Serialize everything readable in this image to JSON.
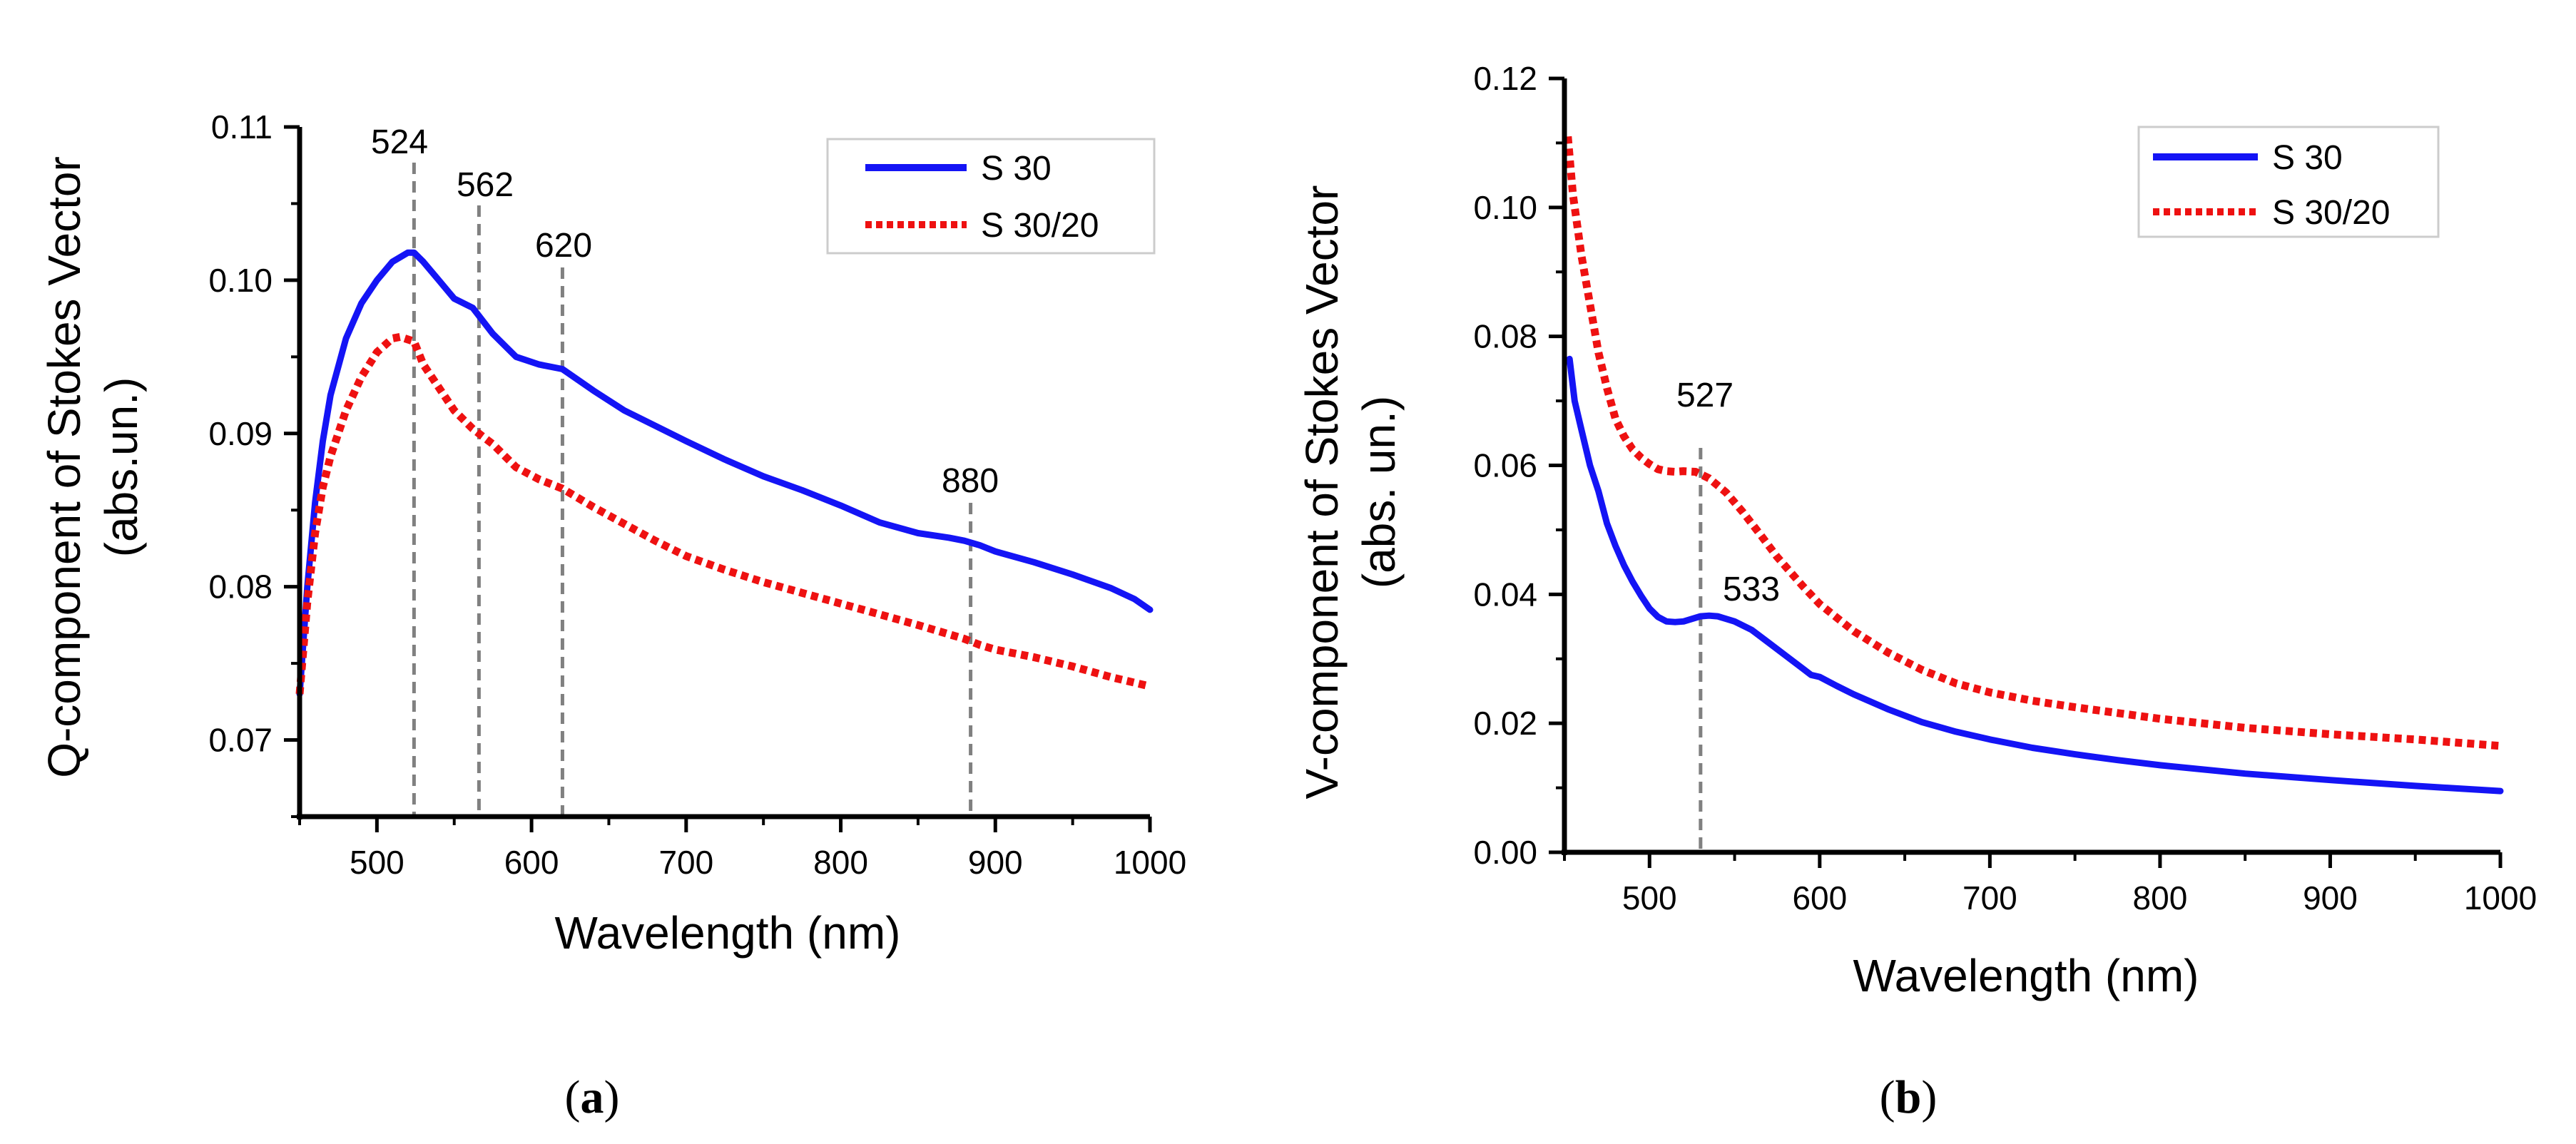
{
  "chart_data": [
    {
      "type": "line",
      "panel_label": "a",
      "xlabel": "Wavelength (nm)",
      "ylabel_line1": "Q-component of Stokes Vector",
      "ylabel_line2": "(abs.un.)",
      "xlim": [
        450,
        1000
      ],
      "ylim": [
        0.065,
        0.11
      ],
      "xticks": [
        500,
        600,
        700,
        800,
        900,
        1000
      ],
      "xtick_labels": [
        "500",
        "600",
        "700",
        "800",
        "900",
        "1000"
      ],
      "yticks": [
        0.07,
        0.08,
        0.09,
        0.1,
        0.11
      ],
      "ytick_labels": [
        "0.07",
        "0.08",
        "0.09",
        "0.10",
        "0.11"
      ],
      "legend_position": "top-right",
      "series": [
        {
          "name": "S 30",
          "color": "#1414f5",
          "style": "solid",
          "x": [
            450,
            455,
            460,
            465,
            470,
            480,
            490,
            500,
            510,
            520,
            524,
            530,
            540,
            550,
            562,
            575,
            590,
            605,
            620,
            640,
            660,
            680,
            700,
            725,
            750,
            775,
            800,
            825,
            850,
            870,
            880,
            890,
            900,
            925,
            950,
            975,
            990,
            1000
          ],
          "y": [
            0.073,
            0.08,
            0.0855,
            0.0895,
            0.0925,
            0.0962,
            0.0985,
            0.1,
            0.1012,
            0.1018,
            0.1018,
            0.1012,
            0.1,
            0.0988,
            0.0982,
            0.0965,
            0.095,
            0.0945,
            0.0942,
            0.0928,
            0.0915,
            0.0905,
            0.0895,
            0.0883,
            0.0872,
            0.0863,
            0.0853,
            0.0842,
            0.0835,
            0.0832,
            0.083,
            0.0827,
            0.0823,
            0.0816,
            0.0808,
            0.0799,
            0.0792,
            0.0785
          ]
        },
        {
          "name": "S 30/20",
          "color": "#ee1111",
          "style": "dotted",
          "x": [
            450,
            455,
            460,
            465,
            470,
            480,
            490,
            500,
            510,
            515,
            524,
            530,
            540,
            550,
            562,
            575,
            590,
            605,
            620,
            640,
            660,
            680,
            700,
            725,
            750,
            775,
            800,
            825,
            850,
            870,
            880,
            890,
            900,
            925,
            950,
            975,
            1000
          ],
          "y": [
            0.073,
            0.079,
            0.0835,
            0.0865,
            0.0885,
            0.0915,
            0.0937,
            0.0953,
            0.0962,
            0.0963,
            0.096,
            0.0945,
            0.093,
            0.0915,
            0.0903,
            0.0893,
            0.0878,
            0.087,
            0.0864,
            0.0852,
            0.0841,
            0.083,
            0.082,
            0.0811,
            0.0803,
            0.0796,
            0.0789,
            0.0782,
            0.0775,
            0.0769,
            0.0766,
            0.0762,
            0.0759,
            0.0754,
            0.0748,
            0.0741,
            0.0735
          ]
        }
      ],
      "annotations": [
        {
          "label": "524",
          "x": 524
        },
        {
          "label": "562",
          "x": 566
        },
        {
          "label": "620",
          "x": 620
        },
        {
          "label": "880",
          "x": 884
        }
      ]
    },
    {
      "type": "line",
      "panel_label": "b",
      "xlabel": "Wavelength (nm)",
      "ylabel_line1": "V-component of Stokes Vector",
      "ylabel_line2": "(abs. un.)",
      "xlim": [
        450,
        1000
      ],
      "ylim": [
        0.0,
        0.12
      ],
      "xticks": [
        500,
        600,
        700,
        800,
        900,
        1000
      ],
      "xtick_labels": [
        "500",
        "600",
        "700",
        "800",
        "900",
        "1000"
      ],
      "yticks": [
        0.0,
        0.02,
        0.04,
        0.06,
        0.08,
        0.1,
        0.12
      ],
      "ytick_labels": [
        "0.00",
        "0.02",
        "0.04",
        "0.06",
        "0.08",
        "0.10",
        "0.12"
      ],
      "legend_position": "top-right",
      "series": [
        {
          "name": "S 30",
          "color": "#1414f5",
          "style": "solid",
          "x": [
            453,
            456,
            460,
            465,
            470,
            475,
            480,
            485,
            490,
            495,
            500,
            505,
            510,
            515,
            520,
            525,
            530,
            535,
            540,
            550,
            560,
            570,
            580,
            590,
            595,
            600,
            610,
            620,
            640,
            660,
            680,
            700,
            725,
            750,
            775,
            800,
            850,
            900,
            950,
            1000
          ],
          "y": [
            0.0765,
            0.07,
            0.0655,
            0.06,
            0.056,
            0.051,
            0.0475,
            0.0445,
            0.042,
            0.0398,
            0.0378,
            0.0365,
            0.0358,
            0.0357,
            0.0358,
            0.0362,
            0.0366,
            0.0367,
            0.0366,
            0.0358,
            0.0345,
            0.0325,
            0.0305,
            0.0285,
            0.0275,
            0.0272,
            0.0258,
            0.0245,
            0.0222,
            0.0202,
            0.0187,
            0.0175,
            0.0162,
            0.0152,
            0.0143,
            0.0135,
            0.0122,
            0.0112,
            0.0103,
            0.0095
          ]
        },
        {
          "name": "S 30/20",
          "color": "#ee1111",
          "style": "dotted",
          "x": [
            452,
            455,
            460,
            465,
            470,
            475,
            480,
            485,
            490,
            495,
            500,
            505,
            510,
            515,
            520,
            527,
            535,
            545,
            555,
            565,
            575,
            590,
            600,
            620,
            640,
            660,
            680,
            700,
            725,
            750,
            775,
            800,
            850,
            900,
            950,
            1000
          ],
          "y": [
            0.111,
            0.102,
            0.0925,
            0.085,
            0.0775,
            0.072,
            0.0672,
            0.0645,
            0.0625,
            0.0612,
            0.0602,
            0.0594,
            0.0591,
            0.059,
            0.0591,
            0.059,
            0.058,
            0.0558,
            0.0527,
            0.0493,
            0.0458,
            0.0413,
            0.0385,
            0.0343,
            0.031,
            0.0283,
            0.0262,
            0.0248,
            0.0235,
            0.0225,
            0.0216,
            0.0207,
            0.0193,
            0.0183,
            0.0175,
            0.0165
          ]
        }
      ],
      "annotations": [
        {
          "label": "527",
          "x": 530
        },
        {
          "label": "533",
          "x": 530
        }
      ]
    }
  ],
  "legend": {
    "a": [
      "S 30",
      "S 30/20"
    ],
    "b": [
      "S 30",
      "S 30/20"
    ]
  },
  "captions": {
    "a": "a",
    "b": "b"
  }
}
